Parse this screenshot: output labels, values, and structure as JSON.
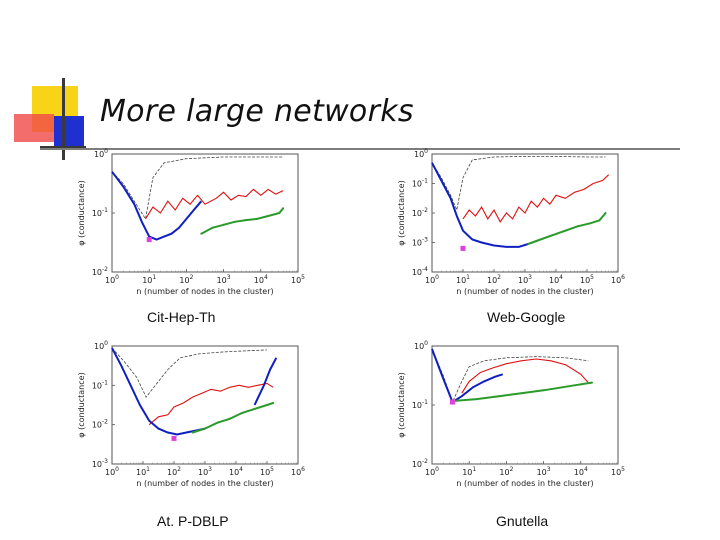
{
  "slide": {
    "title": "More large networks"
  },
  "colors": {
    "yellow": "#f7d417",
    "red": "#f04848",
    "blue": "#1f2fd0",
    "bar": "#3a3a3a",
    "series_dashed": "#444444",
    "series_red": "#e01010",
    "series_blue": "#1020c0",
    "series_green": "#2a9a2a",
    "marker": "#e040e0"
  },
  "chart_data": [
    {
      "type": "line",
      "caption": "Cit-Hep-Th",
      "xlabel": "n (number of nodes in the cluster)",
      "ylabel": "φ (conductance)",
      "xlim_exp": [
        0,
        5
      ],
      "ylim_exp": [
        -2,
        0
      ],
      "xticks": [
        "10^0",
        "10^1",
        "10^2",
        "10^3",
        "10^4",
        "10^5"
      ],
      "yticks": [
        "10^-2",
        "10^-1",
        "10^0"
      ],
      "series": [
        {
          "name": "dashed",
          "points": [
            [
              0,
              -0.3
            ],
            [
              0.3,
              -0.5
            ],
            [
              0.6,
              -0.8
            ],
            [
              0.9,
              -1.1
            ],
            [
              1.1,
              -0.4
            ],
            [
              1.4,
              -0.15
            ],
            [
              2,
              -0.08
            ],
            [
              3,
              -0.05
            ],
            [
              4,
              -0.05
            ],
            [
              4.6,
              -0.05
            ]
          ]
        },
        {
          "name": "red",
          "points": [
            [
              0.9,
              -1.1
            ],
            [
              1.1,
              -0.9
            ],
            [
              1.3,
              -1.0
            ],
            [
              1.5,
              -0.8
            ],
            [
              1.7,
              -0.95
            ],
            [
              1.9,
              -0.75
            ],
            [
              2.1,
              -0.85
            ],
            [
              2.3,
              -0.7
            ],
            [
              2.5,
              -0.85
            ],
            [
              2.8,
              -0.75
            ],
            [
              3.0,
              -0.65
            ],
            [
              3.2,
              -0.78
            ],
            [
              3.4,
              -0.7
            ],
            [
              3.6,
              -0.72
            ],
            [
              3.8,
              -0.6
            ],
            [
              4.0,
              -0.7
            ],
            [
              4.2,
              -0.6
            ],
            [
              4.4,
              -0.68
            ],
            [
              4.6,
              -0.62
            ]
          ]
        },
        {
          "name": "blue",
          "points": [
            [
              0,
              -0.3
            ],
            [
              0.3,
              -0.55
            ],
            [
              0.6,
              -0.85
            ],
            [
              0.8,
              -1.15
            ],
            [
              1.0,
              -1.4
            ],
            [
              1.2,
              -1.45
            ],
            [
              1.4,
              -1.4
            ],
            [
              1.6,
              -1.35
            ],
            [
              1.8,
              -1.25
            ],
            [
              2.0,
              -1.1
            ],
            [
              2.2,
              -0.95
            ],
            [
              2.4,
              -0.8
            ]
          ]
        },
        {
          "name": "green",
          "points": [
            [
              2.4,
              -1.35
            ],
            [
              2.7,
              -1.25
            ],
            [
              3.0,
              -1.2
            ],
            [
              3.3,
              -1.15
            ],
            [
              3.6,
              -1.12
            ],
            [
              3.9,
              -1.1
            ],
            [
              4.2,
              -1.05
            ],
            [
              4.5,
              -1.0
            ],
            [
              4.6,
              -0.92
            ]
          ]
        }
      ],
      "min_marker": [
        1.0,
        -1.45
      ]
    },
    {
      "type": "line",
      "caption": "Web-Google",
      "xlabel": "n (number of nodes in the cluster)",
      "ylabel": "φ (conductance)",
      "xlim_exp": [
        0,
        6
      ],
      "ylim_exp": [
        -4,
        0
      ],
      "xticks": [
        "10^0",
        "10^1",
        "10^2",
        "10^3",
        "10^4",
        "10^5",
        "10^6"
      ],
      "yticks": [
        "10^-4",
        "10^-3",
        "10^-2",
        "10^-1",
        "10^0"
      ],
      "series": [
        {
          "name": "dashed",
          "points": [
            [
              0,
              -0.3
            ],
            [
              0.3,
              -0.8
            ],
            [
              0.6,
              -1.4
            ],
            [
              0.8,
              -1.9
            ],
            [
              1.0,
              -0.8
            ],
            [
              1.3,
              -0.2
            ],
            [
              2,
              -0.1
            ],
            [
              3,
              -0.08
            ],
            [
              4,
              -0.08
            ],
            [
              5,
              -0.1
            ],
            [
              5.6,
              -0.1
            ]
          ]
        },
        {
          "name": "red",
          "points": [
            [
              1.0,
              -2.2
            ],
            [
              1.2,
              -1.9
            ],
            [
              1.4,
              -2.1
            ],
            [
              1.6,
              -1.8
            ],
            [
              1.8,
              -2.2
            ],
            [
              2.0,
              -1.9
            ],
            [
              2.2,
              -2.3
            ],
            [
              2.4,
              -2.0
            ],
            [
              2.6,
              -2.2
            ],
            [
              2.8,
              -1.8
            ],
            [
              3.0,
              -2.0
            ],
            [
              3.2,
              -1.6
            ],
            [
              3.4,
              -1.8
            ],
            [
              3.6,
              -1.5
            ],
            [
              3.8,
              -1.7
            ],
            [
              4.0,
              -1.4
            ],
            [
              4.3,
              -1.5
            ],
            [
              4.6,
              -1.3
            ],
            [
              4.9,
              -1.2
            ],
            [
              5.2,
              -1.0
            ],
            [
              5.5,
              -0.9
            ],
            [
              5.7,
              -0.7
            ]
          ]
        },
        {
          "name": "blue",
          "points": [
            [
              0,
              -0.3
            ],
            [
              0.3,
              -0.9
            ],
            [
              0.6,
              -1.5
            ],
            [
              0.8,
              -2.1
            ],
            [
              1.0,
              -2.6
            ],
            [
              1.3,
              -2.9
            ],
            [
              1.6,
              -3.0
            ],
            [
              2.0,
              -3.1
            ],
            [
              2.4,
              -3.15
            ],
            [
              2.8,
              -3.15
            ],
            [
              3.1,
              -3.05
            ]
          ]
        },
        {
          "name": "green",
          "points": [
            [
              3.1,
              -3.05
            ],
            [
              3.5,
              -2.9
            ],
            [
              3.9,
              -2.75
            ],
            [
              4.3,
              -2.6
            ],
            [
              4.7,
              -2.45
            ],
            [
              5.1,
              -2.35
            ],
            [
              5.4,
              -2.25
            ],
            [
              5.6,
              -2.0
            ]
          ]
        }
      ],
      "min_marker": [
        1.0,
        -3.2
      ]
    },
    {
      "type": "line",
      "caption": "At. P-DBLP",
      "xlabel": "n (number of nodes in the cluster)",
      "ylabel": "φ (conductance)",
      "xlim_exp": [
        0,
        6
      ],
      "ylim_exp": [
        -3,
        0
      ],
      "xticks": [
        "10^0",
        "10^1",
        "10^2",
        "10^3",
        "10^4",
        "10^5",
        "10^6"
      ],
      "yticks": [
        "10^-3",
        "10^-2",
        "10^-1",
        "10^0"
      ],
      "series": [
        {
          "name": "dashed",
          "points": [
            [
              0,
              -0.05
            ],
            [
              0.4,
              -0.4
            ],
            [
              0.8,
              -0.8
            ],
            [
              1.1,
              -1.3
            ],
            [
              1.4,
              -1.0
            ],
            [
              1.8,
              -0.6
            ],
            [
              2.2,
              -0.3
            ],
            [
              2.8,
              -0.2
            ],
            [
              3.6,
              -0.15
            ],
            [
              4.4,
              -0.12
            ],
            [
              5.0,
              -0.1
            ]
          ]
        },
        {
          "name": "red",
          "points": [
            [
              1.2,
              -2.0
            ],
            [
              1.5,
              -1.8
            ],
            [
              1.8,
              -1.75
            ],
            [
              2.0,
              -1.55
            ],
            [
              2.3,
              -1.45
            ],
            [
              2.6,
              -1.3
            ],
            [
              2.9,
              -1.2
            ],
            [
              3.2,
              -1.1
            ],
            [
              3.5,
              -1.15
            ],
            [
              3.8,
              -1.05
            ],
            [
              4.1,
              -1.0
            ],
            [
              4.4,
              -1.05
            ],
            [
              4.7,
              -1.0
            ],
            [
              5.0,
              -0.95
            ],
            [
              5.2,
              -1.05
            ]
          ]
        },
        {
          "name": "blue",
          "points": [
            [
              0,
              -0.05
            ],
            [
              0.3,
              -0.5
            ],
            [
              0.6,
              -1.0
            ],
            [
              0.9,
              -1.5
            ],
            [
              1.2,
              -1.9
            ],
            [
              1.5,
              -2.1
            ],
            [
              1.8,
              -2.2
            ],
            [
              2.1,
              -2.25
            ],
            [
              2.4,
              -2.2
            ],
            [
              2.7,
              -2.15
            ],
            [
              3.0,
              -2.1
            ]
          ]
        },
        {
          "name": "green",
          "points": [
            [
              2.6,
              -2.2
            ],
            [
              3.0,
              -2.1
            ],
            [
              3.4,
              -1.95
            ],
            [
              3.8,
              -1.85
            ],
            [
              4.2,
              -1.7
            ],
            [
              4.6,
              -1.6
            ],
            [
              5.0,
              -1.5
            ],
            [
              5.2,
              -1.45
            ]
          ]
        },
        {
          "name": "blue-tail",
          "points": [
            [
              4.6,
              -1.5
            ],
            [
              4.9,
              -1.0
            ],
            [
              5.1,
              -0.6
            ],
            [
              5.3,
              -0.3
            ]
          ]
        }
      ],
      "min_marker": [
        2.0,
        -2.35
      ]
    },
    {
      "type": "line",
      "caption": "Gnutella",
      "xlabel": "n (number of nodes in the cluster)",
      "ylabel": "φ (conductance)",
      "xlim_exp": [
        0,
        5
      ],
      "ylim_exp": [
        -2,
        0
      ],
      "xticks": [
        "10^0",
        "10^1",
        "10^2",
        "10^3",
        "10^4",
        "10^5"
      ],
      "yticks": [
        "10^-2",
        "10^-1",
        "10^0"
      ],
      "series": [
        {
          "name": "dashed",
          "points": [
            [
              0,
              -0.05
            ],
            [
              0.3,
              -0.5
            ],
            [
              0.55,
              -0.95
            ],
            [
              0.8,
              -0.6
            ],
            [
              1.0,
              -0.35
            ],
            [
              1.4,
              -0.25
            ],
            [
              2.0,
              -0.2
            ],
            [
              2.8,
              -0.18
            ],
            [
              3.6,
              -0.2
            ],
            [
              4.2,
              -0.25
            ]
          ]
        },
        {
          "name": "red",
          "points": [
            [
              0.8,
              -0.8
            ],
            [
              1.0,
              -0.6
            ],
            [
              1.3,
              -0.45
            ],
            [
              1.6,
              -0.38
            ],
            [
              2.0,
              -0.3
            ],
            [
              2.4,
              -0.25
            ],
            [
              2.8,
              -0.22
            ],
            [
              3.2,
              -0.25
            ],
            [
              3.6,
              -0.32
            ],
            [
              4.0,
              -0.48
            ],
            [
              4.2,
              -0.62
            ]
          ]
        },
        {
          "name": "blue",
          "points": [
            [
              0,
              -0.05
            ],
            [
              0.3,
              -0.55
            ],
            [
              0.55,
              -0.95
            ],
            [
              0.8,
              -0.85
            ],
            [
              1.1,
              -0.7
            ],
            [
              1.4,
              -0.6
            ],
            [
              1.7,
              -0.52
            ],
            [
              1.9,
              -0.48
            ]
          ]
        },
        {
          "name": "green",
          "points": [
            [
              0.6,
              -0.93
            ],
            [
              1.2,
              -0.9
            ],
            [
              1.8,
              -0.85
            ],
            [
              2.4,
              -0.8
            ],
            [
              3.0,
              -0.75
            ],
            [
              3.5,
              -0.7
            ],
            [
              4.0,
              -0.65
            ],
            [
              4.3,
              -0.62
            ]
          ]
        }
      ],
      "min_marker": [
        0.55,
        -0.95
      ]
    }
  ]
}
